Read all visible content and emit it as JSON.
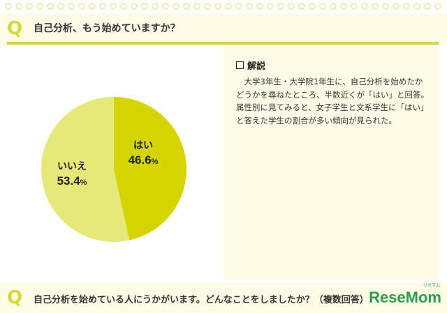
{
  "question1": {
    "mark": "Q",
    "text": "自己分析、もう始めていますか？"
  },
  "note": {
    "title": "解説",
    "body": "大学3年生・大学院1年生に、自己分析を始めたかどうかを尋ねたところ、半数近くが「はい」と回答。属性別に見てみると、女子学生と文系学生に「はい」と答えた学生の割合が多い傾向が見られた。"
  },
  "question2": {
    "mark": "Q",
    "text": "自己分析を始めている人にうかがいます。どんなことをしましたか？（複数回答）"
  },
  "brand": {
    "name": "ReseMom",
    "sub": "リセマム"
  },
  "colors": {
    "accent": "#d4d64a",
    "yes_slice": "#d3d400",
    "no_slice": "#e6e97a",
    "panel_bg": "#fdfce7",
    "brand": "#2e9b4f"
  },
  "chart_data": {
    "type": "pie",
    "slices": [
      {
        "label": "はい",
        "value": 46.6,
        "value_text": "46.6",
        "unit": "%",
        "color": "#d3d400"
      },
      {
        "label": "いいえ",
        "value": 53.4,
        "value_text": "53.4",
        "unit": "%",
        "color": "#e6e97a"
      }
    ],
    "start": "12 o'clock",
    "direction": "clockwise"
  }
}
